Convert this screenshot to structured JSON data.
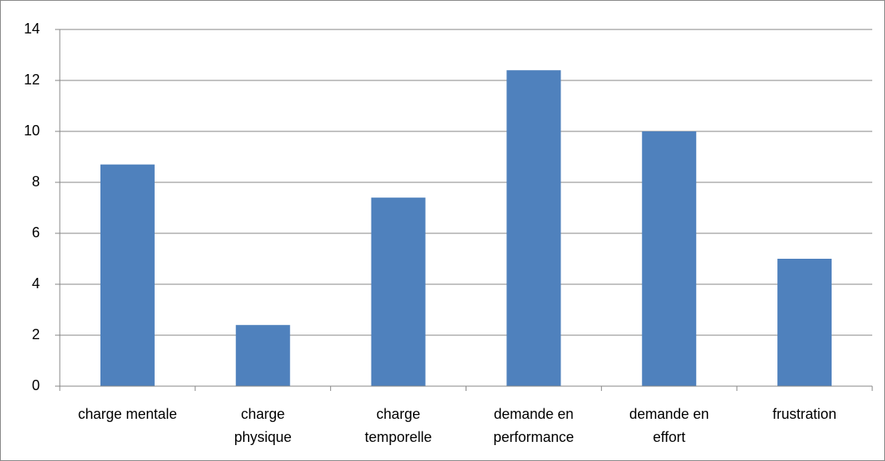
{
  "chart_data": {
    "type": "bar",
    "categories": [
      "charge mentale",
      "charge physique",
      "charge temporelle",
      "demande en performance",
      "demande en effort",
      "frustration"
    ],
    "values": [
      8.7,
      2.4,
      7.4,
      12.4,
      10,
      5
    ],
    "color": "#4f81bd",
    "ylim": [
      0,
      14
    ],
    "yticks": [
      0,
      2,
      4,
      6,
      8,
      10,
      12,
      14
    ],
    "grid": true
  }
}
